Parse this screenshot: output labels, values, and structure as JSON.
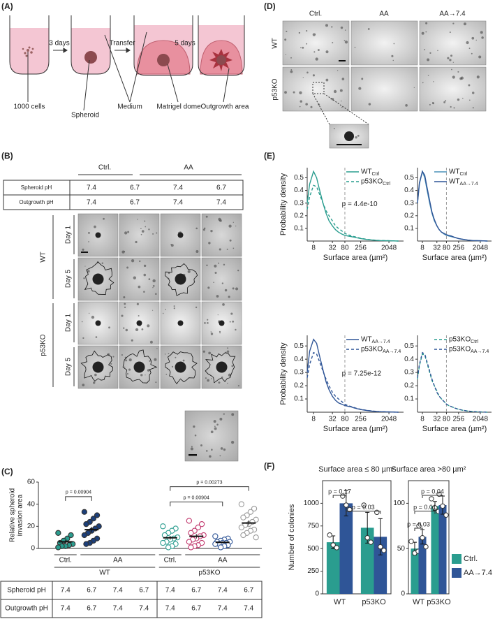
{
  "panel_labels": [
    "(A)",
    "(B)",
    "(C)",
    "(D)",
    "(E)",
    "(F)"
  ],
  "panel_a": {
    "steps": [
      "3 days",
      "Transfer",
      "5 days"
    ],
    "labels": [
      "1000 cells",
      "Spheroid",
      "Medium",
      "Matrigel dome",
      "Outgrowth area"
    ]
  },
  "panel_b": {
    "header": [
      "Ctrl.",
      "AA"
    ],
    "rows": [
      [
        "Spheroid pH",
        7.4,
        6.7,
        7.4,
        6.7
      ],
      [
        "Outgrowth pH",
        7.4,
        6.7,
        7.4,
        7.4
      ]
    ],
    "genotypes": [
      "WT",
      "p53KO"
    ],
    "days": [
      "Day 1",
      "Day 5"
    ]
  },
  "panel_c_table": {
    "groups": [
      "Ctrl.",
      "AA",
      "Ctrl.",
      "AA"
    ],
    "genotypes": [
      "WT",
      "p53KO"
    ],
    "rows": [
      [
        "Spheroid pH",
        7.4,
        6.7,
        7.4,
        6.7,
        7.4,
        6.7,
        7.4,
        6.7
      ],
      [
        "Outgrowth pH",
        7.4,
        6.7,
        7.4,
        7.4,
        7.4,
        6.7,
        7.4,
        7.4
      ]
    ]
  },
  "panel_d": {
    "columns": [
      "Ctrl.",
      "AA",
      "AA→7.4"
    ],
    "rows": [
      "WT",
      "p53KO"
    ]
  },
  "chart_data": [
    {
      "type": "strip",
      "ylabel": [
        "Relative spheroid",
        "invasion area"
      ],
      "ylim": [
        0,
        60
      ],
      "yticks": [
        0,
        20,
        40,
        60
      ],
      "groups": [
        {
          "color": "#2a9d8f",
          "filled": true,
          "values": [
            14,
            12,
            9,
            7,
            5,
            4,
            3,
            2,
            2,
            1
          ],
          "mean": 6,
          "sem": 1.4
        },
        {
          "color": "#1c3f7a",
          "filled": true,
          "values": [
            33,
            30,
            27,
            24,
            22,
            20,
            18,
            16,
            14,
            12,
            9,
            7,
            5,
            4
          ],
          "mean": 17,
          "sem": 2.5
        },
        null,
        null,
        {
          "color": "#2a9d8f",
          "filled": false,
          "values": [
            20,
            18,
            16,
            14,
            12,
            10,
            9,
            8,
            6,
            5,
            4,
            2,
            1
          ],
          "mean": 9.6,
          "sem": 1.7
        },
        {
          "color": "#c0356b",
          "filled": false,
          "values": [
            25,
            22,
            19,
            16,
            14,
            12,
            11,
            9,
            8,
            6,
            5,
            3,
            2,
            1
          ],
          "mean": 11,
          "sem": 2
        },
        {
          "color": "#2f5597",
          "filled": false,
          "values": [
            11,
            9,
            8,
            7,
            6,
            6,
            5,
            5,
            4,
            4,
            3,
            2,
            1
          ],
          "mean": 5.5,
          "sem": 0.8
        },
        {
          "color": "#9a9a9a",
          "filled": false,
          "values": [
            40,
            36,
            33,
            30,
            28,
            26,
            24,
            22,
            21,
            19,
            17,
            16,
            14,
            12,
            10
          ],
          "mean": 23,
          "sem": 2.3
        }
      ],
      "annotations": [
        "p = 0.00904",
        "p = 0.00904",
        "p = 0.00273"
      ]
    },
    {
      "type": "line",
      "ylabel": "Probability density",
      "xlabel": "Surface area (µm²)",
      "log_x": true,
      "x": [
        5,
        6,
        8,
        10,
        12,
        16,
        20,
        25,
        32,
        40,
        50,
        64,
        80,
        100,
        128,
        160,
        200,
        256,
        400,
        600,
        1000,
        2048,
        4096
      ],
      "xlim": [
        5,
        6000
      ],
      "xticks": [
        8,
        32,
        80,
        256,
        2048
      ],
      "ylim": [
        0,
        0.58
      ],
      "yticks": [
        0.1,
        0.2,
        0.3,
        0.4,
        0.5
      ],
      "vline": 80,
      "series": [
        {
          "name": "WT",
          "subscript": "Ctrl",
          "color": "#2a9d8f",
          "dashed": false,
          "values": [
            0.3,
            0.45,
            0.55,
            0.5,
            0.42,
            0.3,
            0.22,
            0.16,
            0.12,
            0.09,
            0.07,
            0.055,
            0.045,
            0.04,
            0.035,
            0.03,
            0.025,
            0.02,
            0.012,
            0.008,
            0.004,
            0.002,
            0
          ]
        },
        {
          "name": "p53KO",
          "subscript": "Ctrl",
          "color": "#2a9d8f",
          "dashed": true,
          "values": [
            0.25,
            0.35,
            0.44,
            0.43,
            0.38,
            0.3,
            0.24,
            0.2,
            0.16,
            0.12,
            0.1,
            0.08,
            0.06,
            0.05,
            0.042,
            0.035,
            0.028,
            0.022,
            0.014,
            0.009,
            0.005,
            0.002,
            0
          ]
        }
      ],
      "annotation": "p = 4.4e-10"
    },
    {
      "type": "line",
      "xlabel": "Surface area (µm²)",
      "log_x": true,
      "x": [
        5,
        6,
        8,
        10,
        12,
        16,
        20,
        25,
        32,
        40,
        50,
        64,
        80,
        100,
        128,
        160,
        200,
        256,
        400,
        600,
        1000,
        2048,
        4096
      ],
      "xlim": [
        5,
        6000
      ],
      "xticks": [
        8,
        32,
        80,
        256,
        2048
      ],
      "ylim": [
        0,
        0.58
      ],
      "yticks": [
        0.1,
        0.2,
        0.3,
        0.4,
        0.5
      ],
      "vline": 80,
      "series": [
        {
          "name": "WT",
          "subscript": "Ctrl",
          "color": "#4a90b8",
          "dashed": false,
          "values": [
            0.3,
            0.45,
            0.55,
            0.5,
            0.42,
            0.3,
            0.22,
            0.16,
            0.12,
            0.09,
            0.07,
            0.055,
            0.045,
            0.04,
            0.035,
            0.03,
            0.025,
            0.02,
            0.012,
            0.008,
            0.004,
            0.002,
            0
          ]
        },
        {
          "name": "WT",
          "subscript": "AA→7.4",
          "color": "#2f5597",
          "dashed": false,
          "values": [
            0.3,
            0.46,
            0.55,
            0.52,
            0.44,
            0.32,
            0.23,
            0.17,
            0.12,
            0.09,
            0.07,
            0.06,
            0.05,
            0.045,
            0.04,
            0.032,
            0.026,
            0.02,
            0.013,
            0.008,
            0.004,
            0.002,
            0
          ]
        }
      ]
    },
    {
      "type": "line",
      "ylabel": "Probability density",
      "xlabel": "Surface area (µm²)",
      "log_x": true,
      "x": [
        5,
        6,
        8,
        10,
        12,
        16,
        20,
        25,
        32,
        40,
        50,
        64,
        80,
        100,
        128,
        160,
        200,
        256,
        400,
        600,
        1000,
        2048,
        4096
      ],
      "xlim": [
        5,
        6000
      ],
      "xticks": [
        8,
        32,
        80,
        256,
        2048
      ],
      "ylim": [
        0,
        0.58
      ],
      "yticks": [
        0.1,
        0.2,
        0.3,
        0.4,
        0.5
      ],
      "vline": 80,
      "series": [
        {
          "name": "WT",
          "subscript": "AA→7.4",
          "color": "#2f5597",
          "dashed": false,
          "values": [
            0.3,
            0.46,
            0.55,
            0.52,
            0.44,
            0.32,
            0.23,
            0.17,
            0.12,
            0.09,
            0.07,
            0.06,
            0.05,
            0.045,
            0.04,
            0.032,
            0.026,
            0.02,
            0.013,
            0.008,
            0.004,
            0.002,
            0
          ]
        },
        {
          "name": "p53KO",
          "subscript": "AA→7.4",
          "color": "#2f5597",
          "dashed": true,
          "values": [
            0.26,
            0.36,
            0.45,
            0.44,
            0.39,
            0.31,
            0.25,
            0.2,
            0.15,
            0.12,
            0.1,
            0.08,
            0.06,
            0.05,
            0.042,
            0.035,
            0.028,
            0.022,
            0.014,
            0.009,
            0.005,
            0.002,
            0
          ]
        }
      ],
      "annotation": "p = 7.25e-12"
    },
    {
      "type": "line",
      "xlabel": "Surface area (µm²)",
      "log_x": true,
      "x": [
        5,
        6,
        8,
        10,
        12,
        16,
        20,
        25,
        32,
        40,
        50,
        64,
        80,
        100,
        128,
        160,
        200,
        256,
        400,
        600,
        1000,
        2048,
        4096
      ],
      "xlim": [
        5,
        6000
      ],
      "xticks": [
        8,
        32,
        80,
        256,
        2048
      ],
      "ylim": [
        0,
        0.58
      ],
      "yticks": [
        0.1,
        0.2,
        0.3,
        0.4,
        0.5
      ],
      "vline": 80,
      "series": [
        {
          "name": "p53KO",
          "subscript": "Ctrl",
          "color": "#2a9d8f",
          "dashed": true,
          "values": [
            0.25,
            0.35,
            0.44,
            0.43,
            0.38,
            0.3,
            0.24,
            0.2,
            0.16,
            0.12,
            0.1,
            0.08,
            0.06,
            0.05,
            0.042,
            0.035,
            0.028,
            0.022,
            0.014,
            0.009,
            0.005,
            0.002,
            0
          ]
        },
        {
          "name": "p53KO",
          "subscript": "AA→7.4",
          "color": "#2f5597",
          "dashed": true,
          "values": [
            0.26,
            0.36,
            0.45,
            0.44,
            0.39,
            0.31,
            0.25,
            0.2,
            0.15,
            0.12,
            0.1,
            0.08,
            0.06,
            0.05,
            0.042,
            0.035,
            0.028,
            0.022,
            0.014,
            0.009,
            0.005,
            0.002,
            0
          ]
        }
      ]
    },
    {
      "type": "bar",
      "title": "Surface area ≤ 80 µm²",
      "ylabel": "Number of colonies",
      "categories": [
        "WT",
        "p53KO"
      ],
      "ylim": [
        0,
        1250
      ],
      "yticks": [
        0,
        250,
        500,
        750,
        1000
      ],
      "series": [
        {
          "color": "#2a9d8f",
          "values": [
            570,
            730
          ],
          "errors": [
            70,
            170
          ],
          "points": [
            [
              650,
              540,
              510
            ],
            [
              980,
              620,
              570
            ]
          ]
        },
        {
          "color": "#2f5597",
          "values": [
            1000,
            630
          ],
          "errors": [
            140,
            200
          ],
          "points": [
            [
              1080,
              980,
              930
            ],
            [
              900,
              520,
              480
            ]
          ]
        }
      ],
      "annotations": [
        "p = 0.17",
        "p = 0.03"
      ]
    },
    {
      "type": "bar",
      "title": "Surface area >80 µm²",
      "categories": [
        "WT",
        "p53KO"
      ],
      "ylim": [
        0,
        125
      ],
      "yticks": [
        0,
        50,
        100
      ],
      "series": [
        {
          "name": "Ctrl.",
          "color": "#2a9d8f",
          "values": [
            50,
            97
          ],
          "errors": [
            7,
            5
          ],
          "points": [
            [
              58,
              45,
              47
            ],
            [
              105,
              95,
              91
            ]
          ]
        },
        {
          "name": "AA→7.4",
          "color": "#2f5597",
          "values": [
            63,
            98
          ],
          "errors": [
            8,
            10
          ],
          "points": [
            [
              75,
              62,
              52
            ],
            [
              110,
              97,
              87
            ]
          ]
        }
      ],
      "annotations": [
        "p = 0.03",
        "p = 0.01",
        "p = 0.04"
      ]
    }
  ]
}
